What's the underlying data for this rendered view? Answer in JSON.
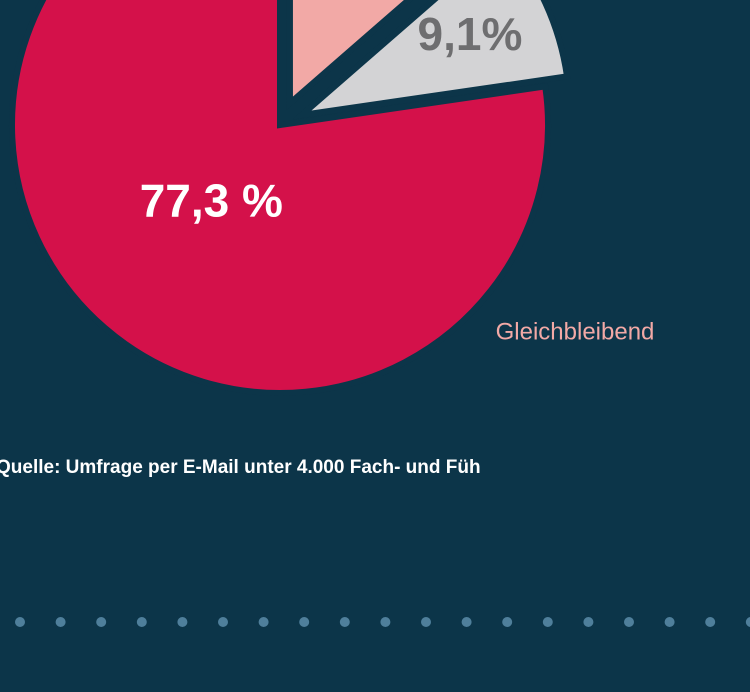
{
  "chart_data": {
    "type": "pie",
    "categories": [
      null,
      null,
      "Gleichbleibend"
    ],
    "values": [
      13.6,
      9.1,
      77.3
    ],
    "value_labels": [
      null,
      "9,1%",
      "77,3 %"
    ],
    "colors": [
      "#f2a9a6",
      "#d3d3d5",
      "#d4114a"
    ],
    "source": "Quelle: Umfrage per E-Mail unter 4.000 Fach- und Füh"
  }
}
